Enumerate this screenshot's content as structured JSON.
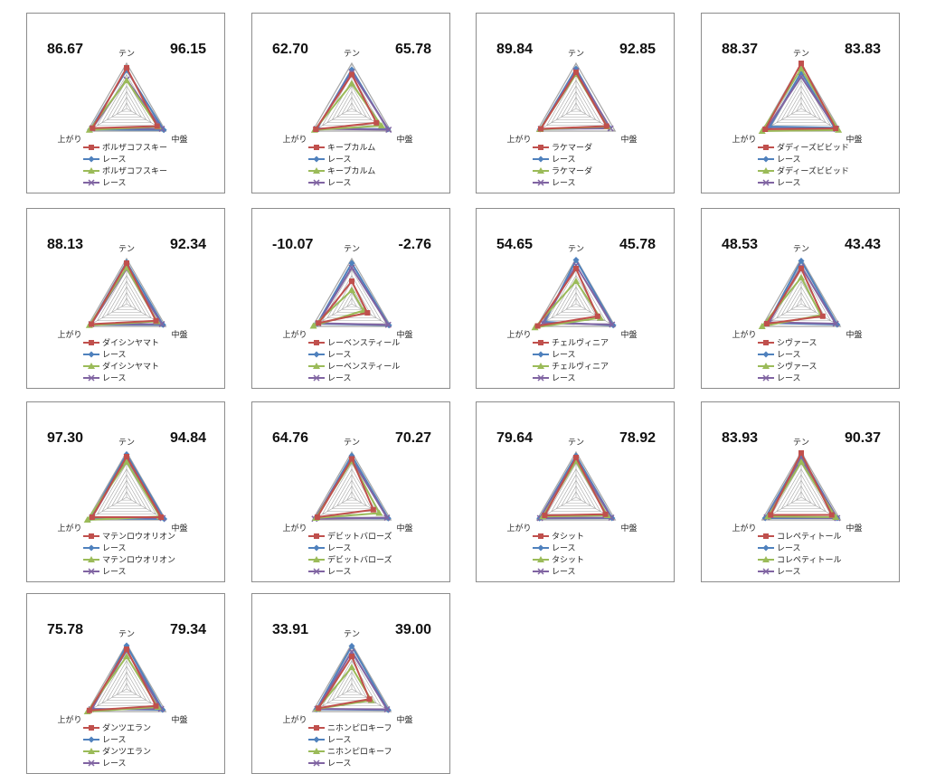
{
  "colors": {
    "horse_red": "#c0504d",
    "race_blue": "#4f81bd",
    "horse_green": "#9bbb59",
    "race_purple": "#8064a2",
    "grid": "#a6a6a6"
  },
  "axes": [
    "テン",
    "中盤",
    "上がり"
  ],
  "race_label": "レース",
  "chart_data": [
    {
      "type": "radar",
      "horse": "ボルザコフスキー",
      "score_left": "86.67",
      "score_right": "96.15",
      "legend": [
        "ボルザコフスキー",
        "レース",
        "ボルザコフスキー",
        "レース"
      ],
      "series": [
        {
          "name": "ボルザコフスキー",
          "values": [
            0.9,
            0.78,
            0.87
          ]
        },
        {
          "name": "レース",
          "values": [
            0.85,
            0.95,
            0.93
          ]
        },
        {
          "name": "ボルザコフスキー",
          "values": [
            0.62,
            0.8,
            0.95
          ]
        },
        {
          "name": "レース",
          "values": [
            0.64,
            0.9,
            0.88
          ]
        }
      ]
    },
    {
      "type": "radar",
      "horse": "キープカルム",
      "score_left": "62.70",
      "score_right": "65.78",
      "legend": [
        "キープカルム",
        "レース",
        "キープカルム",
        "レース"
      ],
      "series": [
        {
          "name": "キープカルム",
          "values": [
            0.75,
            0.63,
            0.92
          ]
        },
        {
          "name": "レース",
          "values": [
            0.86,
            0.92,
            0.88
          ]
        },
        {
          "name": "キープカルム",
          "values": [
            0.55,
            0.76,
            0.95
          ]
        },
        {
          "name": "レース",
          "values": [
            0.8,
            0.94,
            0.9
          ]
        }
      ]
    },
    {
      "type": "radar",
      "horse": "ラケマーダ",
      "score_left": "89.84",
      "score_right": "92.85",
      "legend": [
        "ラケマーダ",
        "レース",
        "ラケマーダ",
        "レース"
      ],
      "series": [
        {
          "name": "ラケマーダ",
          "values": [
            0.8,
            0.78,
            0.9
          ]
        },
        {
          "name": "レース",
          "values": [
            0.88,
            0.85,
            0.92
          ]
        },
        {
          "name": "ラケマーダ",
          "values": [
            0.76,
            0.8,
            0.92
          ]
        },
        {
          "name": "レース",
          "values": [
            0.83,
            0.88,
            0.9
          ]
        }
      ]
    },
    {
      "type": "radar",
      "horse": "ダディーズビビッド",
      "score_left": "88.37",
      "score_right": "83.83",
      "legend": [
        "ダディーズビビッド",
        "レース",
        "ダディーズビビッド",
        "レース"
      ],
      "series": [
        {
          "name": "ダディーズビビッド",
          "values": [
            1.0,
            0.88,
            0.92
          ]
        },
        {
          "name": "レース",
          "values": [
            0.8,
            0.85,
            0.8
          ]
        },
        {
          "name": "ダディーズビビッド",
          "values": [
            0.88,
            0.95,
            1.0
          ]
        },
        {
          "name": "レース",
          "values": [
            0.7,
            0.9,
            0.88
          ]
        }
      ]
    },
    {
      "type": "radar",
      "horse": "ダイシンヤマト",
      "score_left": "88.13",
      "score_right": "92.34",
      "legend": [
        "ダイシンヤマト",
        "レース",
        "ダイシンヤマト",
        "レース"
      ],
      "series": [
        {
          "name": "ダイシンヤマト",
          "values": [
            0.9,
            0.75,
            0.9
          ]
        },
        {
          "name": "レース",
          "values": [
            0.92,
            0.93,
            0.92
          ]
        },
        {
          "name": "ダイシンヤマト",
          "values": [
            0.8,
            0.78,
            0.95
          ]
        },
        {
          "name": "レース",
          "values": [
            0.78,
            0.9,
            0.9
          ]
        }
      ]
    },
    {
      "type": "radar",
      "horse": "レーベンスティール",
      "score_left": "-10.07",
      "score_right": "-2.76",
      "legend": [
        "レーベンスティール",
        "レース",
        "レーベンスティール",
        "レース"
      ],
      "series": [
        {
          "name": "レーベンスティール",
          "values": [
            0.5,
            0.4,
            0.85
          ]
        },
        {
          "name": "レース",
          "values": [
            0.9,
            0.95,
            0.88
          ]
        },
        {
          "name": "レーベンスティール",
          "values": [
            0.3,
            0.3,
            0.98
          ]
        },
        {
          "name": "レース",
          "values": [
            0.8,
            0.93,
            0.86
          ]
        }
      ]
    },
    {
      "type": "radar",
      "horse": "チェルヴィニア",
      "score_left": "54.65",
      "score_right": "45.78",
      "legend": [
        "チェルヴィニア",
        "レース",
        "チェルヴィニア",
        "レース"
      ],
      "series": [
        {
          "name": "チェルヴィニア",
          "values": [
            0.78,
            0.55,
            0.98
          ]
        },
        {
          "name": "レース",
          "values": [
            0.97,
            0.95,
            0.8
          ]
        },
        {
          "name": "チェルヴィニア",
          "values": [
            0.5,
            0.62,
            1.05
          ]
        },
        {
          "name": "レース",
          "values": [
            0.85,
            0.92,
            0.85
          ]
        }
      ]
    },
    {
      "type": "radar",
      "horse": "シヴァース",
      "score_left": "48.53",
      "score_right": "43.43",
      "legend": [
        "シヴァース",
        "レース",
        "シヴァース",
        "レース"
      ],
      "series": [
        {
          "name": "シヴァース",
          "values": [
            0.78,
            0.55,
            0.88
          ]
        },
        {
          "name": "レース",
          "values": [
            0.95,
            0.92,
            0.85
          ]
        },
        {
          "name": "シヴァース",
          "values": [
            0.58,
            0.5,
            1.0
          ]
        },
        {
          "name": "レース",
          "values": [
            0.82,
            0.88,
            0.82
          ]
        }
      ]
    },
    {
      "type": "radar",
      "horse": "マテンロウオリオン",
      "score_left": "97.30",
      "score_right": "94.84",
      "legend": [
        "マテンロウオリオン",
        "レース",
        "マテンロウオリオン",
        "レース"
      ],
      "series": [
        {
          "name": "マテンロウオリオン",
          "values": [
            0.9,
            0.88,
            0.88
          ]
        },
        {
          "name": "レース",
          "values": [
            0.95,
            0.96,
            0.93
          ]
        },
        {
          "name": "マテンロウオリオン",
          "values": [
            0.78,
            0.85,
            1.0
          ]
        },
        {
          "name": "レース",
          "values": [
            0.86,
            0.92,
            0.88
          ]
        }
      ]
    },
    {
      "type": "radar",
      "horse": "デビットバローズ",
      "score_left": "64.76",
      "score_right": "70.27",
      "legend": [
        "デビットバローズ",
        "レース",
        "デビットバローズ",
        "レース"
      ],
      "series": [
        {
          "name": "デビットバローズ",
          "values": [
            0.85,
            0.55,
            0.88
          ]
        },
        {
          "name": "レース",
          "values": [
            0.92,
            0.93,
            0.92
          ]
        },
        {
          "name": "デビットバローズ",
          "values": [
            0.8,
            0.7,
            0.92
          ]
        },
        {
          "name": "レース",
          "values": [
            0.84,
            0.9,
            0.95
          ]
        }
      ]
    },
    {
      "type": "radar",
      "horse": "タシット",
      "score_left": "79.64",
      "score_right": "78.92",
      "legend": [
        "タシット",
        "レース",
        "タシット",
        "レース"
      ],
      "series": [
        {
          "name": "タシット",
          "values": [
            0.88,
            0.75,
            0.8
          ]
        },
        {
          "name": "レース",
          "values": [
            0.92,
            0.92,
            0.93
          ]
        },
        {
          "name": "タシット",
          "values": [
            0.8,
            0.8,
            0.85
          ]
        },
        {
          "name": "レース",
          "values": [
            0.85,
            0.9,
            0.92
          ]
        }
      ]
    },
    {
      "type": "radar",
      "horse": "コレペティトール",
      "score_left": "83.93",
      "score_right": "90.37",
      "legend": [
        "コレペティトール",
        "レース",
        "コレペティトール",
        "レース"
      ],
      "series": [
        {
          "name": "コレペティトール",
          "values": [
            0.98,
            0.78,
            0.78
          ]
        },
        {
          "name": "レース",
          "values": [
            0.92,
            0.92,
            0.92
          ]
        },
        {
          "name": "コレペティトール",
          "values": [
            0.78,
            0.88,
            0.85
          ]
        },
        {
          "name": "レース",
          "values": [
            0.85,
            0.92,
            0.88
          ]
        }
      ]
    },
    {
      "type": "radar",
      "horse": "ダンツエラン",
      "score_left": "75.78",
      "score_right": "79.34",
      "legend": [
        "ダンツエラン",
        "レース",
        "ダンツエラン",
        "レース"
      ],
      "series": [
        {
          "name": "ダンツエラン",
          "values": [
            0.88,
            0.75,
            0.95
          ]
        },
        {
          "name": "レース",
          "values": [
            0.96,
            0.92,
            0.88
          ]
        },
        {
          "name": "ダンツエラン",
          "values": [
            0.72,
            0.8,
            1.0
          ]
        },
        {
          "name": "レース",
          "values": [
            0.85,
            0.88,
            0.9
          ]
        }
      ]
    },
    {
      "type": "radar",
      "horse": "ニホンピロキーフ",
      "score_left": "33.91",
      "score_right": "39.00",
      "legend": [
        "ニホンピロキーフ",
        "レース",
        "ニホンピロキーフ",
        "レース"
      ],
      "series": [
        {
          "name": "ニホンピロキーフ",
          "values": [
            0.72,
            0.45,
            0.85
          ]
        },
        {
          "name": "レース",
          "values": [
            0.95,
            0.93,
            0.9
          ]
        },
        {
          "name": "ニホンピロキーフ",
          "values": [
            0.48,
            0.5,
            0.88
          ]
        },
        {
          "name": "レース",
          "values": [
            0.82,
            0.9,
            0.88
          ]
        }
      ]
    }
  ]
}
